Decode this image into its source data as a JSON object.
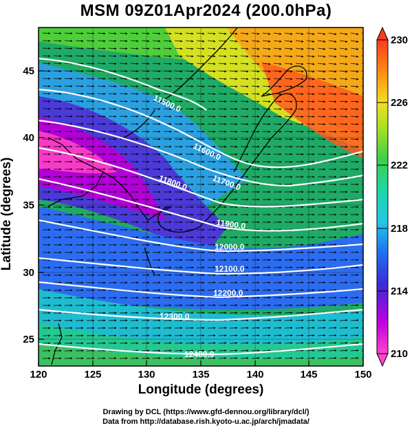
{
  "title": "MSM 09Z01Apr2024 (200.0hPa)",
  "x_axis": {
    "label": "Longitude (degrees)",
    "min": 120,
    "max": 150,
    "ticks": [
      "120",
      "125",
      "130",
      "135",
      "140",
      "145",
      "150"
    ]
  },
  "y_axis": {
    "label": "Latitude  (degrees)",
    "min": 22.4,
    "max": 47.6,
    "ticks": [
      "25",
      "30",
      "35",
      "40",
      "45"
    ]
  },
  "colorbar": {
    "min": 210,
    "max": 230,
    "ticks": [
      "210",
      "214",
      "218",
      "222",
      "226",
      "230"
    ],
    "colors": [
      "#ff44cc",
      "#c000e0",
      "#3a2ad8",
      "#1f6ff0",
      "#22c8e8",
      "#1fd6a8",
      "#3cd04a",
      "#a8e020",
      "#f2e020",
      "#ff8a10",
      "#ff3a1e"
    ]
  },
  "contour_labels": [
    "11500.0",
    "11600.0",
    "11700.0",
    "11800.0",
    "11900.0",
    "12000.0",
    "12100.0",
    "12200.0",
    "12300.0",
    "12400.0"
  ],
  "credits": {
    "line1": "Drawing by DCL (https://www.gfd-dennou.org/library/dcl/)",
    "line2": "Data from http://database.rish.kyoto-u.ac.jp/arch/jmadata/"
  }
}
